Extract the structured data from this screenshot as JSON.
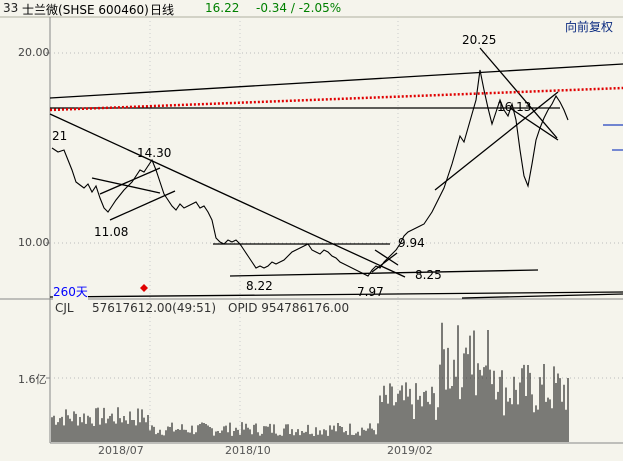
{
  "header": {
    "code": "33",
    "name": "士兰微",
    "symbol": "(SHSE 600460)",
    "period": "日线",
    "price": "16.22",
    "change": "-0.34 / -2.05%"
  },
  "restore_label": "向前复权",
  "period_label": "260天",
  "volume_panel": {
    "indicator_label": "CJL",
    "indicator_value": "57617612.00(49:51)",
    "opid_value": "OPID 954786176.00",
    "y_tick_label": "1.6亿"
  },
  "price_axis_labels": [
    "20.00",
    "10.00"
  ],
  "date_labels": [
    "2018/07",
    "2018/10",
    "2019/02"
  ],
  "annotations": {
    "a21": "21",
    "a1430": "14.30",
    "a1108": "11.08",
    "a822": "8.22",
    "a797": "7.97",
    "a825": "8.25",
    "a994": "9.94",
    "a2025": "20.25",
    "a1613": "16.13"
  },
  "colors": {
    "background": "#f5f4ec",
    "price_up": "#008000",
    "ma_line": "#e00000",
    "trend_line": "#000000",
    "period_label": "#0000ff",
    "restore": "#0a2a80"
  },
  "icons": {
    "marker": "red-diamond-icon"
  }
}
